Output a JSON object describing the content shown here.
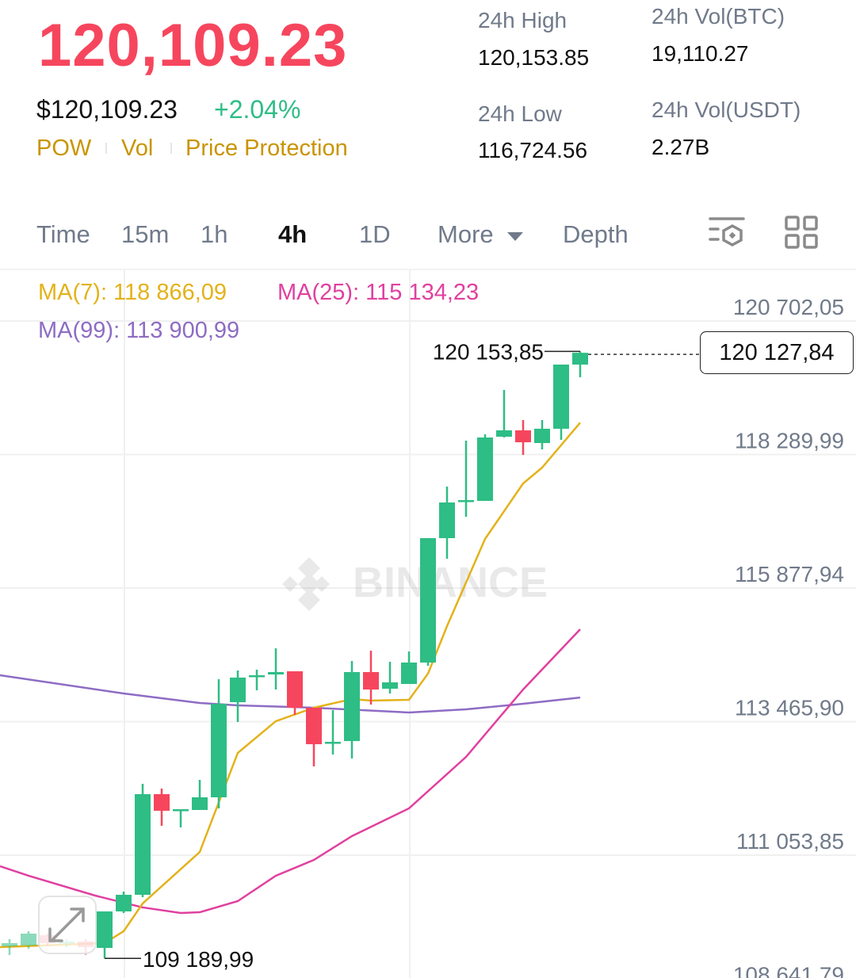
{
  "header": {
    "last_price": "120,109.23",
    "usd_price": "$120,109.23",
    "change_pct": "+2.04%",
    "tags": [
      "POW",
      "Vol",
      "Price Protection"
    ],
    "stats": [
      {
        "label": "24h High",
        "value": "120,153.85"
      },
      {
        "label": "24h Vol(BTC)",
        "value": "19,110.27"
      },
      {
        "label": "24h Low",
        "value": "116,724.56"
      },
      {
        "label": "24h Vol(USDT)",
        "value": "2.27B"
      }
    ]
  },
  "tabs": [
    {
      "label": "Time"
    },
    {
      "label": "15m"
    },
    {
      "label": "1h"
    },
    {
      "label": "4h",
      "active": true
    },
    {
      "label": "1D"
    },
    {
      "label": "More"
    },
    {
      "label": "Depth"
    }
  ],
  "icons": {
    "settings": "indicator-settings-icon",
    "layout": "grid-layout-icon",
    "more": "caret-down-icon",
    "expand": "expand-icon"
  },
  "colors": {
    "up": "#2EBD85",
    "down": "#F6465D",
    "ma7": "#E3B21A",
    "ma25": "#E040A0",
    "ma99": "#8E6CC4",
    "accent": "#C99400"
  },
  "legend": {
    "ma7": "MA(7): 118 866,09",
    "ma25": "MA(25): 115 134,23",
    "ma99": "MA(99): 113 900,99"
  },
  "watermark": "BINANCE",
  "chart_data": {
    "type": "candlestick",
    "interval": "4h",
    "y_ticks": [
      120702.05,
      118289.99,
      115877.94,
      113465.9,
      111053.85,
      108641.79
    ],
    "y_tick_labels": [
      "120 702,05",
      "118 289,99",
      "115 877,94",
      "113 465,90",
      "111 053,85",
      "108 641,79"
    ],
    "current_price": 120127.84,
    "current_price_label": "120 127,84",
    "high_marker": {
      "value": 120153.85,
      "label": "120 153,85",
      "index": 30
    },
    "low_marker": {
      "value": 109189.99,
      "label": "109 189,99",
      "index": 5
    },
    "candles": [
      [
        109408,
        109537,
        109250,
        109465
      ],
      [
        109422,
        109680,
        109365,
        109637
      ],
      [
        109608,
        109637,
        109408,
        109465
      ],
      [
        109465,
        109537,
        109394,
        109494
      ],
      [
        109494,
        109537,
        109250,
        109394
      ],
      [
        109379,
        110038,
        109189.99,
        110038
      ],
      [
        110038,
        110396,
        110009,
        110338
      ],
      [
        110338,
        112342,
        110295,
        112156
      ],
      [
        112156,
        112257,
        111584,
        111856
      ],
      [
        111856,
        111884,
        111555,
        111884
      ],
      [
        111870,
        112414,
        111870,
        112099
      ],
      [
        112099,
        114232,
        111899,
        113788
      ],
      [
        113817,
        114390,
        113459,
        114261
      ],
      [
        114275,
        114404,
        114032,
        114304
      ],
      [
        114318,
        114790,
        114046,
        114361
      ],
      [
        114375,
        114375,
        113588,
        113717
      ],
      [
        113717,
        113717,
        112657,
        113058
      ],
      [
        113073,
        113674,
        112872,
        113101
      ],
      [
        113115,
        114561,
        112801,
        114361
      ],
      [
        114361,
        114747,
        113774,
        114046
      ],
      [
        114060,
        114547,
        113974,
        114175
      ],
      [
        114146,
        114733,
        114146,
        114533
      ],
      [
        114533,
        116780,
        114475,
        116780
      ],
      [
        116780,
        117711,
        116408,
        117424
      ],
      [
        117439,
        118541,
        117167,
        117467
      ],
      [
        117453,
        118655,
        117453,
        118598
      ],
      [
        118612,
        119457,
        118598,
        118727
      ],
      [
        118727,
        118913,
        118283,
        118512
      ],
      [
        118498,
        118913,
        118383,
        118756
      ],
      [
        118756,
        119915,
        118555,
        119915
      ],
      [
        119915,
        120153.85,
        119686,
        120127.84
      ]
    ],
    "ma7": [
      [
        -0.5,
        109393
      ],
      [
        5,
        109465
      ],
      [
        6,
        109680
      ],
      [
        7,
        110181
      ],
      [
        10,
        111111
      ],
      [
        12,
        112901
      ],
      [
        14,
        113474
      ],
      [
        16,
        113717
      ],
      [
        18,
        113874
      ],
      [
        19,
        113846
      ],
      [
        21,
        113860
      ],
      [
        22,
        114333
      ],
      [
        23,
        115191
      ],
      [
        25,
        116766
      ],
      [
        27,
        117768
      ],
      [
        28,
        118054
      ],
      [
        30,
        118866.09
      ]
    ],
    "ma25": [
      [
        -0.5,
        110854
      ],
      [
        1,
        110682
      ],
      [
        4.5,
        110324
      ],
      [
        7,
        110110
      ],
      [
        9,
        110009
      ],
      [
        10,
        110023
      ],
      [
        12,
        110224
      ],
      [
        14,
        110682
      ],
      [
        16,
        110968
      ],
      [
        18,
        111398
      ],
      [
        21,
        111899
      ],
      [
        24,
        112829
      ],
      [
        27,
        114046
      ],
      [
        30,
        115134.23
      ]
    ],
    "ma99": [
      [
        -0.5,
        114303
      ],
      [
        6,
        113974
      ],
      [
        10,
        113803
      ],
      [
        12,
        113760
      ],
      [
        16,
        113717
      ],
      [
        21,
        113631
      ],
      [
        24,
        113688
      ],
      [
        27,
        113788
      ],
      [
        30,
        113900.99
      ]
    ]
  }
}
